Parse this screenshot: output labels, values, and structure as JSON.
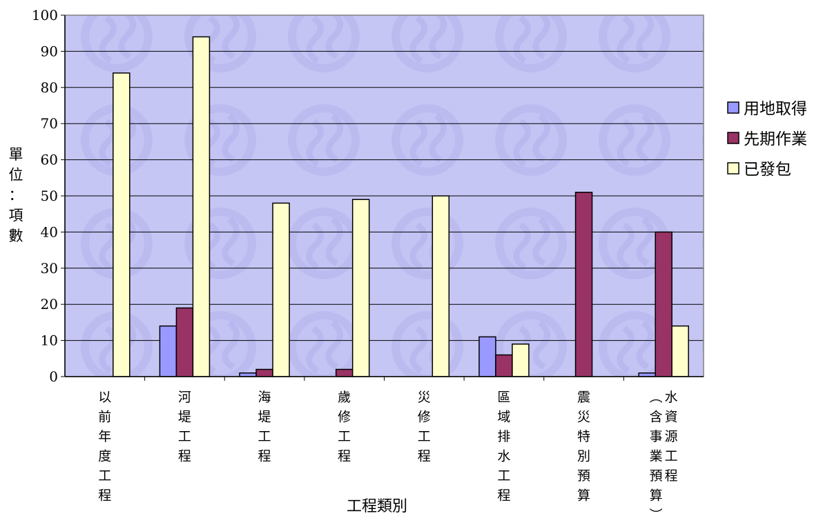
{
  "chart_data": {
    "type": "bar",
    "title": "",
    "xlabel": "工程類別",
    "ylabel": "單位：項數",
    "ylim": [
      0,
      100
    ],
    "yticks": [
      0,
      10,
      20,
      30,
      40,
      50,
      60,
      70,
      80,
      90,
      100
    ],
    "grid": true,
    "legend_position": "right",
    "categories": [
      "以前年度工程",
      "河堤工程",
      "海堤工程",
      "歲修工程",
      "災修工程",
      "區域排水工程",
      "震災特別預算",
      "水資源工程（含事業預算）"
    ],
    "category_columns": [
      [
        "以前年度工程"
      ],
      [
        "河堤工程"
      ],
      [
        "海堤工程"
      ],
      [
        "歲修工程"
      ],
      [
        "災修工程"
      ],
      [
        "區域排水工程"
      ],
      [
        "震災特別預算"
      ],
      [
        "︵含事業預算︶",
        "水資源工程"
      ]
    ],
    "series": [
      {
        "name": "用地取得",
        "color": "#9999ff",
        "values": [
          0,
          14,
          1,
          0,
          0,
          11,
          0,
          1
        ]
      },
      {
        "name": "先期作業",
        "color": "#993366",
        "values": [
          0,
          19,
          2,
          2,
          0,
          6,
          51,
          40
        ]
      },
      {
        "name": "已發包",
        "color": "#ffffcc",
        "values": [
          84,
          94,
          48,
          49,
          50,
          9,
          0,
          14
        ]
      }
    ],
    "plot_background": "#c6c6f5"
  }
}
